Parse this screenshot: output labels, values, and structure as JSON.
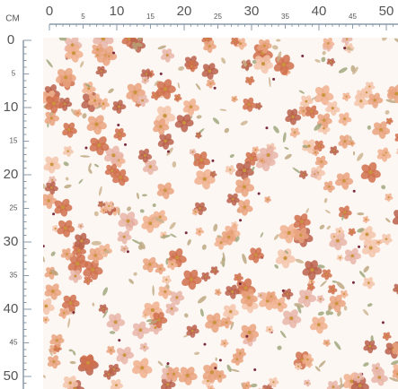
{
  "unit": "CM",
  "top_ruler": {
    "labels": [
      "0",
      "5",
      "10",
      "15",
      "20",
      "25",
      "30",
      "35",
      "40",
      "45",
      "50"
    ]
  },
  "left_ruler": {
    "labels": [
      "0",
      "5",
      "10",
      "15",
      "20",
      "25",
      "30",
      "35",
      "40",
      "45",
      "50"
    ]
  }
}
